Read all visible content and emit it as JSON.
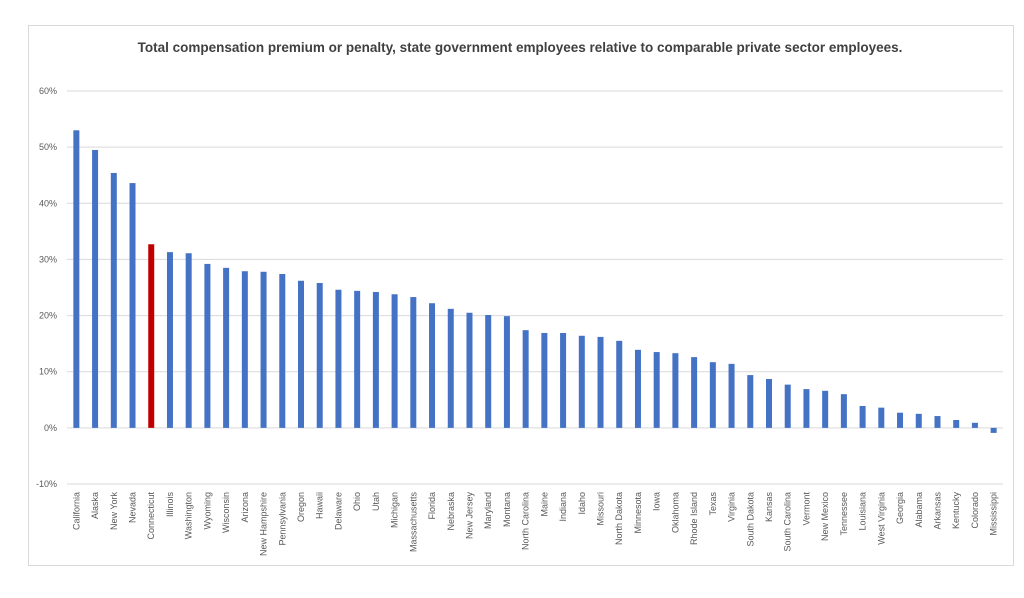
{
  "chart_data": {
    "type": "bar",
    "title": "Total compensation premium or penalty, state government employees relative to comparable private sector employees.",
    "xlabel": "",
    "ylabel": "",
    "ylim": [
      -10,
      60
    ],
    "yticks": [
      -10,
      0,
      10,
      20,
      30,
      40,
      50,
      60
    ],
    "ytick_format": "percent",
    "grid": true,
    "legend": "none",
    "colors": {
      "default": "#4472c4",
      "highlight": "#c00000"
    },
    "highlight": "Connecticut",
    "categories": [
      "California",
      "Alaska",
      "New York",
      "Nevada",
      "Connecticut",
      "Illinois",
      "Washington",
      "Wyoming",
      "Wisconsin",
      "Arizona",
      "New Hampshire",
      "Pennsylvania",
      "Oregon",
      "Hawaii",
      "Delaware",
      "Ohio",
      "Utah",
      "Michigan",
      "Massachusetts",
      "Florida",
      "Nebraska",
      "New Jersey",
      "Maryland",
      "Montana",
      "North Carolina",
      "Maine",
      "Indiana",
      "Idaho",
      "Missouri",
      "North Dakota",
      "Minnesota",
      "Iowa",
      "Oklahoma",
      "Rhode Island",
      "Texas",
      "Virginia",
      "South Dakota",
      "Kansas",
      "South Carolina",
      "Vermont",
      "New Mexico",
      "Tennessee",
      "Louisiana",
      "West Virginia",
      "Georgia",
      "Alabama",
      "Arkansas",
      "Kentucky",
      "Colorado",
      "Mississippi"
    ],
    "values": [
      53.0,
      49.5,
      45.4,
      43.6,
      32.7,
      31.3,
      31.1,
      29.2,
      28.5,
      27.9,
      27.8,
      27.4,
      26.2,
      25.8,
      24.6,
      24.4,
      24.2,
      23.8,
      23.3,
      22.2,
      21.2,
      20.5,
      20.1,
      19.9,
      17.4,
      16.9,
      16.9,
      16.4,
      16.2,
      15.5,
      13.9,
      13.5,
      13.3,
      12.6,
      11.7,
      11.4,
      9.4,
      8.7,
      7.7,
      6.9,
      6.6,
      6.0,
      3.9,
      3.6,
      2.7,
      2.5,
      2.1,
      1.4,
      0.9,
      -0.9
    ]
  }
}
